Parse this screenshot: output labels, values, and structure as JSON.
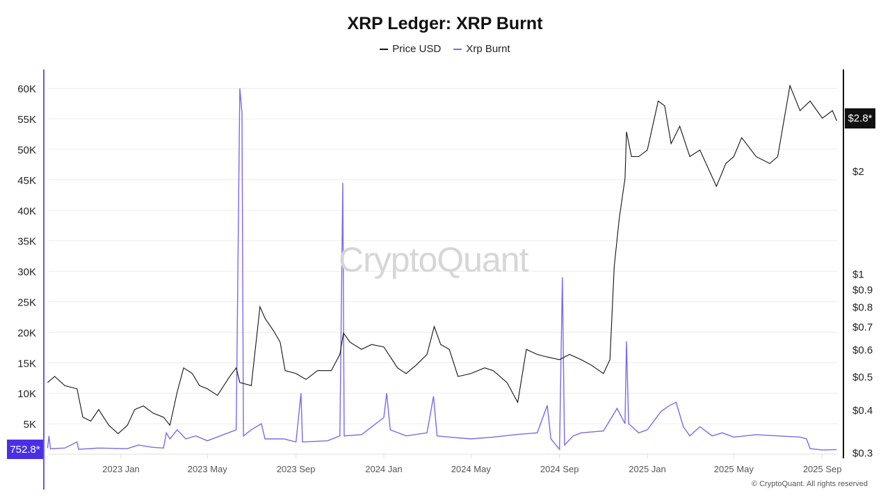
{
  "title": "XRP Ledger: XRP Burnt",
  "footer": "© CryptoQuant. All rights reserved",
  "watermark": "CryptoQuant",
  "chart_data": {
    "type": "line",
    "title": "XRP Ledger: XRP Burnt",
    "legend_position": "top-center",
    "grid": true,
    "x_ticks": [
      "2023 Jan",
      "2023 May",
      "2023 Sep",
      "2024 Jan",
      "2024 May",
      "2024 Sep",
      "2025 Jan",
      "2025 May",
      "2025 Sep"
    ],
    "x_tick_dates": [
      "2023-01-01",
      "2023-05-01",
      "2023-09-01",
      "2024-01-01",
      "2024-05-01",
      "2024-09-01",
      "2025-01-01",
      "2025-05-01",
      "2025-09-01"
    ],
    "xlim": [
      "2022-09-21",
      "2025-09-21"
    ],
    "left_axis": {
      "ticks": [
        "5K",
        "10K",
        "15K",
        "20K",
        "25K",
        "30K",
        "35K",
        "40K",
        "45K",
        "50K",
        "55K",
        "60K"
      ],
      "tick_values": [
        5000,
        10000,
        15000,
        20000,
        25000,
        30000,
        35000,
        40000,
        45000,
        50000,
        55000,
        60000
      ],
      "ylim": [
        0,
        63000
      ],
      "scale": "linear"
    },
    "right_axis": {
      "ticks": [
        "$0.3",
        "$0.4",
        "$0.5",
        "$0.6",
        "$0.7",
        "$0.8",
        "$0.9",
        "$1",
        "$2"
      ],
      "tick_values": [
        0.3,
        0.4,
        0.5,
        0.6,
        0.7,
        0.8,
        0.9,
        1,
        2
      ],
      "scale": "log"
    },
    "current_values": {
      "xrp_burnt": "752.8*",
      "price": "$2.8*"
    },
    "series": [
      {
        "name": "Price USD",
        "axis": "right",
        "color": "#111111",
        "points": [
          [
            "2022-09-21",
            0.48
          ],
          [
            "2022-10-01",
            0.5
          ],
          [
            "2022-10-15",
            0.47
          ],
          [
            "2022-11-01",
            0.46
          ],
          [
            "2022-11-09",
            0.38
          ],
          [
            "2022-11-20",
            0.37
          ],
          [
            "2022-12-01",
            0.4
          ],
          [
            "2022-12-15",
            0.36
          ],
          [
            "2022-12-28",
            0.34
          ],
          [
            "2023-01-10",
            0.36
          ],
          [
            "2023-01-20",
            0.4
          ],
          [
            "2023-02-01",
            0.41
          ],
          [
            "2023-02-15",
            0.39
          ],
          [
            "2023-03-01",
            0.38
          ],
          [
            "2023-03-10",
            0.36
          ],
          [
            "2023-03-20",
            0.45
          ],
          [
            "2023-03-29",
            0.53
          ],
          [
            "2023-04-10",
            0.51
          ],
          [
            "2023-04-20",
            0.47
          ],
          [
            "2023-05-01",
            0.46
          ],
          [
            "2023-05-15",
            0.44
          ],
          [
            "2023-06-01",
            0.5
          ],
          [
            "2023-06-10",
            0.53
          ],
          [
            "2023-06-15",
            0.48
          ],
          [
            "2023-07-01",
            0.47
          ],
          [
            "2023-07-13",
            0.8
          ],
          [
            "2023-07-20",
            0.74
          ],
          [
            "2023-08-01",
            0.68
          ],
          [
            "2023-08-10",
            0.63
          ],
          [
            "2023-08-17",
            0.52
          ],
          [
            "2023-09-01",
            0.51
          ],
          [
            "2023-09-15",
            0.49
          ],
          [
            "2023-10-01",
            0.52
          ],
          [
            "2023-10-20",
            0.52
          ],
          [
            "2023-11-01",
            0.58
          ],
          [
            "2023-11-06",
            0.67
          ],
          [
            "2023-11-15",
            0.63
          ],
          [
            "2023-12-01",
            0.6
          ],
          [
            "2023-12-15",
            0.62
          ],
          [
            "2024-01-01",
            0.61
          ],
          [
            "2024-01-20",
            0.53
          ],
          [
            "2024-02-01",
            0.51
          ],
          [
            "2024-02-15",
            0.54
          ],
          [
            "2024-03-01",
            0.58
          ],
          [
            "2024-03-11",
            0.7
          ],
          [
            "2024-03-20",
            0.62
          ],
          [
            "2024-04-01",
            0.6
          ],
          [
            "2024-04-13",
            0.5
          ],
          [
            "2024-05-01",
            0.51
          ],
          [
            "2024-05-20",
            0.53
          ],
          [
            "2024-06-01",
            0.52
          ],
          [
            "2024-06-20",
            0.48
          ],
          [
            "2024-07-05",
            0.42
          ],
          [
            "2024-07-17",
            0.6
          ],
          [
            "2024-08-01",
            0.58
          ],
          [
            "2024-08-15",
            0.57
          ],
          [
            "2024-09-01",
            0.56
          ],
          [
            "2024-09-15",
            0.58
          ],
          [
            "2024-10-01",
            0.56
          ],
          [
            "2024-10-15",
            0.54
          ],
          [
            "2024-11-01",
            0.51
          ],
          [
            "2024-11-10",
            0.56
          ],
          [
            "2024-11-16",
            1.05
          ],
          [
            "2024-11-23",
            1.45
          ],
          [
            "2024-12-01",
            1.9
          ],
          [
            "2024-12-03",
            2.6
          ],
          [
            "2024-12-10",
            2.2
          ],
          [
            "2024-12-20",
            2.2
          ],
          [
            "2025-01-01",
            2.3
          ],
          [
            "2025-01-16",
            3.2
          ],
          [
            "2025-01-25",
            3.1
          ],
          [
            "2025-02-03",
            2.4
          ],
          [
            "2025-02-15",
            2.7
          ],
          [
            "2025-03-01",
            2.2
          ],
          [
            "2025-03-15",
            2.3
          ],
          [
            "2025-04-07",
            1.8
          ],
          [
            "2025-04-20",
            2.1
          ],
          [
            "2025-05-01",
            2.2
          ],
          [
            "2025-05-12",
            2.5
          ],
          [
            "2025-06-01",
            2.2
          ],
          [
            "2025-06-20",
            2.1
          ],
          [
            "2025-07-01",
            2.2
          ],
          [
            "2025-07-18",
            3.55
          ],
          [
            "2025-08-01",
            3.0
          ],
          [
            "2025-08-15",
            3.2
          ],
          [
            "2025-09-01",
            2.85
          ],
          [
            "2025-09-15",
            3.0
          ],
          [
            "2025-09-21",
            2.8
          ]
        ]
      },
      {
        "name": "Xrp Burnt",
        "axis": "left",
        "color": "#7b68ee",
        "points": [
          [
            "2022-09-21",
            1000
          ],
          [
            "2022-09-23",
            3000
          ],
          [
            "2022-09-25",
            900
          ],
          [
            "2022-10-15",
            1000
          ],
          [
            "2022-11-01",
            2000
          ],
          [
            "2022-11-03",
            800
          ],
          [
            "2022-12-01",
            1000
          ],
          [
            "2023-01-10",
            900
          ],
          [
            "2023-01-25",
            1500
          ],
          [
            "2023-02-15",
            1100
          ],
          [
            "2023-03-01",
            1000
          ],
          [
            "2023-03-05",
            3500
          ],
          [
            "2023-03-10",
            2500
          ],
          [
            "2023-03-20",
            4000
          ],
          [
            "2023-04-01",
            2500
          ],
          [
            "2023-04-15",
            3000
          ],
          [
            "2023-05-01",
            2200
          ],
          [
            "2023-06-10",
            4000
          ],
          [
            "2023-06-15",
            60000
          ],
          [
            "2023-06-18",
            56000
          ],
          [
            "2023-06-20",
            3000
          ],
          [
            "2023-07-01",
            4000
          ],
          [
            "2023-07-15",
            5000
          ],
          [
            "2023-07-20",
            2500
          ],
          [
            "2023-08-15",
            2500
          ],
          [
            "2023-09-01",
            2000
          ],
          [
            "2023-09-08",
            10000
          ],
          [
            "2023-09-10",
            2000
          ],
          [
            "2023-10-15",
            2200
          ],
          [
            "2023-11-01",
            3000
          ],
          [
            "2023-11-05",
            44500
          ],
          [
            "2023-11-07",
            3000
          ],
          [
            "2023-12-01",
            3200
          ],
          [
            "2024-01-01",
            6000
          ],
          [
            "2024-01-05",
            10000
          ],
          [
            "2024-01-10",
            4000
          ],
          [
            "2024-02-01",
            3000
          ],
          [
            "2024-03-01",
            3500
          ],
          [
            "2024-03-10",
            9500
          ],
          [
            "2024-03-15",
            3000
          ],
          [
            "2024-04-01",
            2800
          ],
          [
            "2024-05-01",
            2500
          ],
          [
            "2024-06-01",
            2800
          ],
          [
            "2024-07-01",
            3200
          ],
          [
            "2024-08-01",
            3500
          ],
          [
            "2024-08-15",
            8000
          ],
          [
            "2024-08-20",
            2500
          ],
          [
            "2024-09-01",
            800
          ],
          [
            "2024-09-05",
            29000
          ],
          [
            "2024-09-08",
            1500
          ],
          [
            "2024-09-20",
            3000
          ],
          [
            "2024-10-01",
            3500
          ],
          [
            "2024-11-01",
            3800
          ],
          [
            "2024-11-20",
            7500
          ],
          [
            "2024-12-01",
            5000
          ],
          [
            "2024-12-03",
            18500
          ],
          [
            "2024-12-06",
            5000
          ],
          [
            "2024-12-20",
            3500
          ],
          [
            "2025-01-01",
            4000
          ],
          [
            "2025-01-20",
            7000
          ],
          [
            "2025-02-01",
            8000
          ],
          [
            "2025-02-10",
            8500
          ],
          [
            "2025-02-20",
            4500
          ],
          [
            "2025-03-01",
            3000
          ],
          [
            "2025-03-15",
            4500
          ],
          [
            "2025-04-01",
            3000
          ],
          [
            "2025-04-15",
            3500
          ],
          [
            "2025-05-01",
            2800
          ],
          [
            "2025-06-01",
            3200
          ],
          [
            "2025-07-01",
            3000
          ],
          [
            "2025-08-01",
            2800
          ],
          [
            "2025-08-10",
            2500
          ],
          [
            "2025-08-15",
            900
          ],
          [
            "2025-09-01",
            700
          ],
          [
            "2025-09-21",
            752.8
          ]
        ]
      }
    ]
  }
}
